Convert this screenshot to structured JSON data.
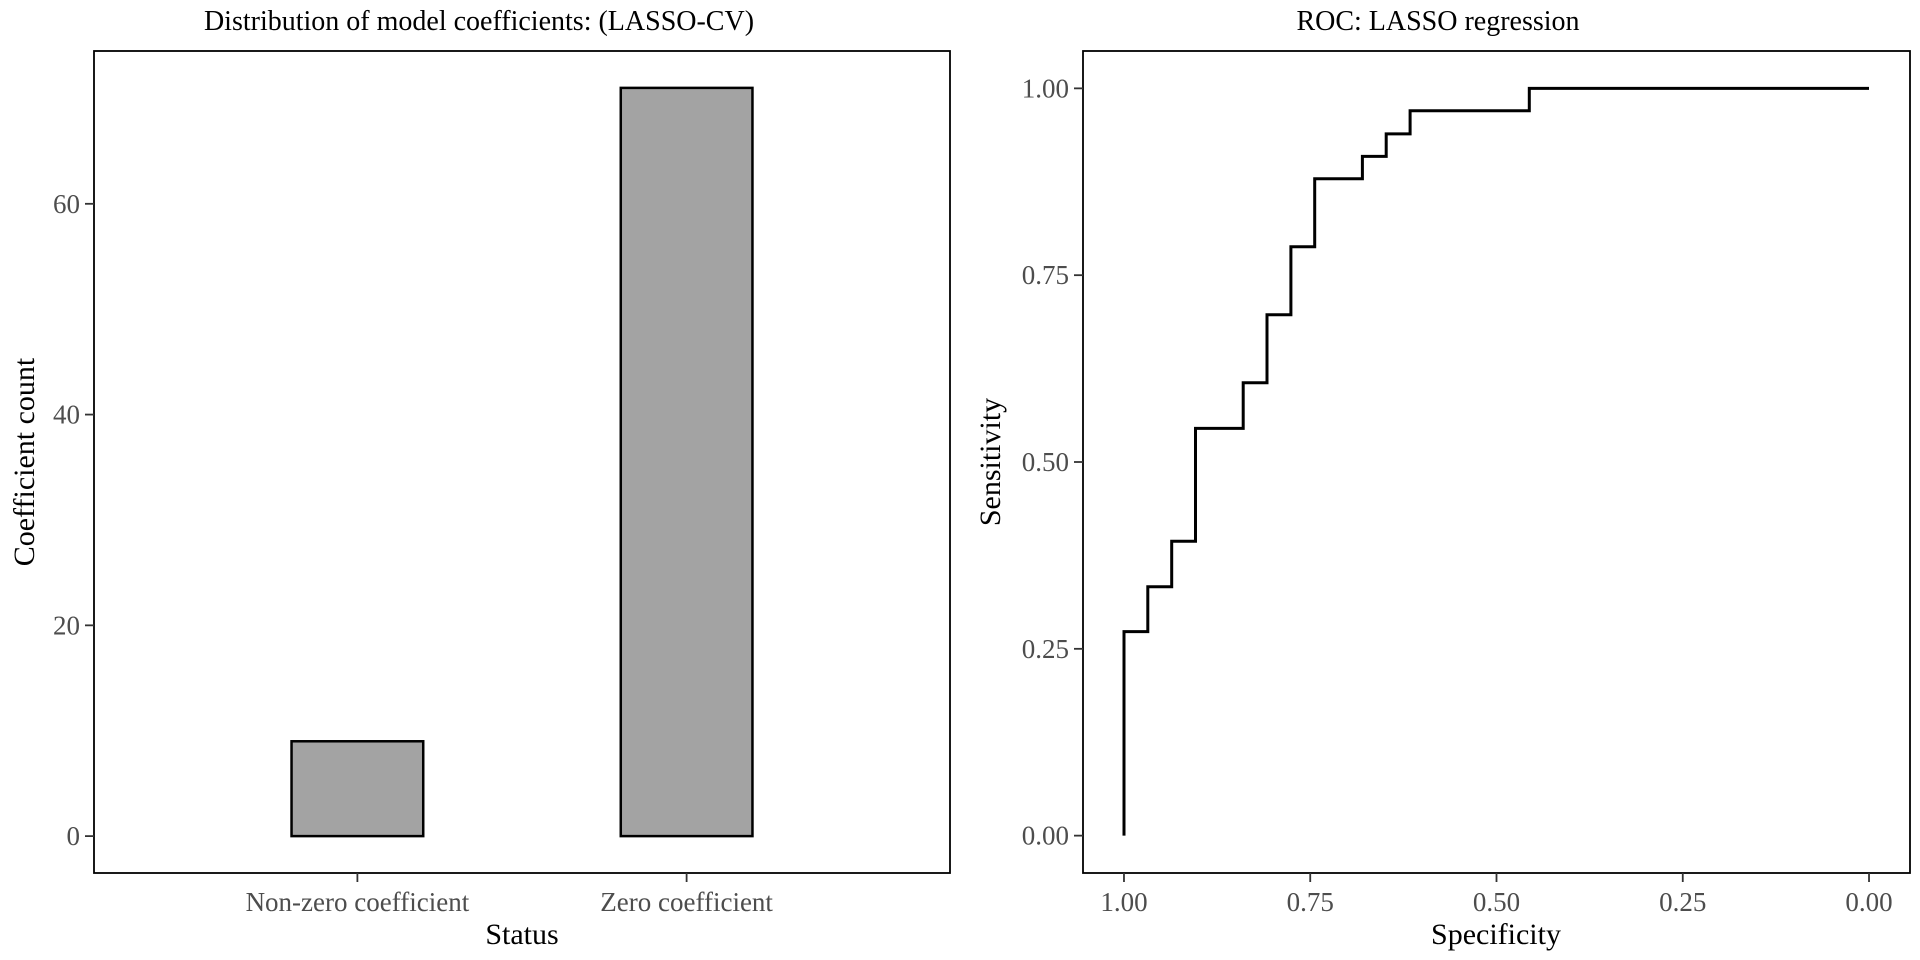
{
  "chart_data": [
    {
      "type": "bar",
      "title": "Distribution of model coefficients: (LASSO-CV)",
      "xlabel": "Status",
      "ylabel": "Coefficient count",
      "categories": [
        "Non-zero coefficient",
        "Zero coefficient"
      ],
      "values": [
        9,
        71
      ],
      "ylim": [
        -3.5,
        74.5
      ],
      "yticks": [
        0,
        20,
        40,
        60
      ],
      "ytick_labels": [
        "0",
        "20",
        "40",
        "60"
      ],
      "bar_color": "#a3a3a3",
      "grid": false,
      "legend": "none"
    },
    {
      "type": "line",
      "title": "ROC: LASSO regression",
      "xlabel": "Specificity",
      "ylabel": "Sensitivity",
      "x_reversed": true,
      "xlim": [
        1.055,
        -0.055
      ],
      "ylim": [
        -0.05,
        1.05
      ],
      "xticks": [
        1.0,
        0.75,
        0.5,
        0.25,
        0.0
      ],
      "xtick_labels": [
        "1.00",
        "0.75",
        "0.50",
        "0.25",
        "0.00"
      ],
      "yticks": [
        0.0,
        0.25,
        0.5,
        0.75,
        1.0
      ],
      "ytick_labels": [
        "0.00",
        "0.25",
        "0.50",
        "0.75",
        "1.00"
      ],
      "grid": false,
      "legend": "none",
      "series": [
        {
          "x": [
            1.0,
            1.0,
            0.968,
            0.968,
            0.936,
            0.936,
            0.904,
            0.904,
            0.84,
            0.84,
            0.808,
            0.808,
            0.776,
            0.776,
            0.744,
            0.744,
            0.68,
            0.68,
            0.648,
            0.648,
            0.616,
            0.616,
            0.456,
            0.456,
            0.0
          ],
          "y": [
            0.0,
            0.273,
            0.273,
            0.333,
            0.333,
            0.394,
            0.394,
            0.545,
            0.545,
            0.606,
            0.606,
            0.697,
            0.697,
            0.788,
            0.788,
            0.879,
            0.879,
            0.909,
            0.909,
            0.939,
            0.939,
            0.97,
            0.97,
            1.0,
            1.0
          ]
        }
      ]
    }
  ]
}
